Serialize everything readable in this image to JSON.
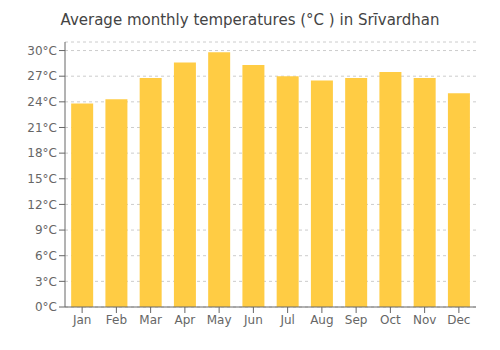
{
  "chart_data": {
    "type": "bar",
    "title": "Average monthly temperatures (°C ) in Srīvardhan",
    "categories": [
      "Jan",
      "Feb",
      "Mar",
      "Apr",
      "May",
      "Jun",
      "Jul",
      "Aug",
      "Sep",
      "Oct",
      "Nov",
      "Dec"
    ],
    "values": [
      23.8,
      24.3,
      26.8,
      28.6,
      29.8,
      28.3,
      27.0,
      26.5,
      26.8,
      27.5,
      26.8,
      25.0
    ],
    "color": "#FFCC44",
    "ylim": [
      0,
      31
    ],
    "yticks": [
      {
        "value": 0,
        "label": "0°C"
      },
      {
        "value": 3,
        "label": "3°C"
      },
      {
        "value": 6,
        "label": "6°C"
      },
      {
        "value": 9,
        "label": "9°C"
      },
      {
        "value": 12,
        "label": "12°C"
      },
      {
        "value": 15,
        "label": "15°C"
      },
      {
        "value": 18,
        "label": "18°C"
      },
      {
        "value": 21,
        "label": "21°C"
      },
      {
        "value": 24,
        "label": "24°C"
      },
      {
        "value": 27,
        "label": "27°C"
      },
      {
        "value": 30,
        "label": "30°C"
      }
    ],
    "grid": true
  }
}
